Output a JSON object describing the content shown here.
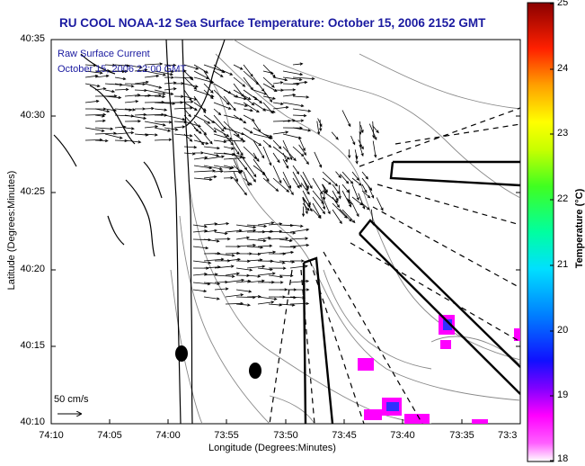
{
  "title": "RU COOL  NOAA-12  Sea Surface Temperature:  October 15, 2006 2152 GMT",
  "legend": {
    "line1": "Raw Surface Current",
    "line2": "October 15, 2006 22:00 GMT"
  },
  "scale_label": "50 cm/s",
  "axes": {
    "xlabel": "Longitude (Degrees:Minutes)",
    "ylabel": "Latitude (Degrees:Minutes)",
    "xticks": [
      "74:10",
      "74:05",
      "74:00",
      "73:55",
      "73:50",
      "73:45",
      "73:40",
      "73:35",
      "73:3"
    ],
    "yticks": [
      "40:35",
      "40:30",
      "40:25",
      "40:20",
      "40:15",
      "40:10"
    ]
  },
  "colorbar": {
    "label": "Temperature (°C)",
    "ticks": [
      "25",
      "24",
      "23",
      "22",
      "21",
      "20",
      "19",
      "18"
    ],
    "range": [
      18,
      25
    ],
    "colors": [
      "#ff00ff",
      "#8000ff",
      "#0000ff",
      "#00c8ff",
      "#00ffc0",
      "#40ff40",
      "#c0ff00",
      "#ffff00",
      "#ffa000",
      "#ff2000",
      "#900000"
    ]
  },
  "colors": {
    "title": "#1a1aa0",
    "coast": "#000000",
    "bathymetry": "#888888",
    "sst_patch": "#ff00ff",
    "sst_cold": "#3030ff"
  }
}
